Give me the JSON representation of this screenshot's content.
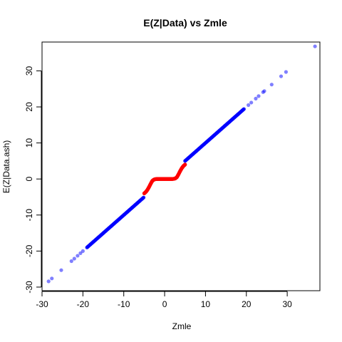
{
  "chart_data": {
    "type": "scatter",
    "title": "E(Z|Data) vs Zmle",
    "xlabel": "Zmle",
    "ylabel": "E(Z|Data.ash)",
    "xlim": [
      -30,
      38
    ],
    "ylim": [
      -31,
      38
    ],
    "xticks": [
      -30,
      -20,
      -10,
      0,
      10,
      20,
      30
    ],
    "yticks": [
      -30,
      -20,
      -10,
      0,
      10,
      20,
      30
    ],
    "grid": false,
    "colors": {
      "blue": "#0000ff",
      "red": "#ff0000"
    },
    "points": [
      {
        "x": -28.4,
        "y": -28.4
      },
      {
        "x": -27.6,
        "y": -27.6
      },
      {
        "x": -25.3,
        "y": -25.3
      },
      {
        "x": -22.8,
        "y": -22.8
      },
      {
        "x": -22.1,
        "y": -22.1
      },
      {
        "x": -21.3,
        "y": -21.3
      },
      {
        "x": -20.6,
        "y": -20.6
      },
      {
        "x": -20.0,
        "y": -20.0
      },
      {
        "x": 20.5,
        "y": 20.5
      },
      {
        "x": 21.2,
        "y": 21.2
      },
      {
        "x": 22.3,
        "y": 22.3
      },
      {
        "x": 23.0,
        "y": 23.0
      },
      {
        "x": 24.1,
        "y": 24.1
      },
      {
        "x": 24.4,
        "y": 24.4
      },
      {
        "x": 26.2,
        "y": 26.2
      },
      {
        "x": 28.5,
        "y": 28.5
      },
      {
        "x": 29.7,
        "y": 29.7
      },
      {
        "x": 36.8,
        "y": 36.8
      }
    ],
    "blue_dense_ranges": [
      [
        -19.0,
        -5.0
      ],
      [
        5.0,
        19.5
      ]
    ],
    "red_curve": [
      {
        "x": -5.0,
        "y": -4.0
      },
      {
        "x": -4.6,
        "y": -3.6
      },
      {
        "x": -4.2,
        "y": -3.0
      },
      {
        "x": -3.8,
        "y": -2.2
      },
      {
        "x": -3.4,
        "y": -1.3
      },
      {
        "x": -3.0,
        "y": -0.5
      },
      {
        "x": -2.6,
        "y": -0.15
      },
      {
        "x": -2.2,
        "y": -0.04
      },
      {
        "x": -1.6,
        "y": 0.0
      },
      {
        "x": 0.0,
        "y": 0.0
      },
      {
        "x": 1.6,
        "y": 0.0
      },
      {
        "x": 2.2,
        "y": 0.04
      },
      {
        "x": 2.6,
        "y": 0.15
      },
      {
        "x": 3.0,
        "y": 0.5
      },
      {
        "x": 3.4,
        "y": 1.3
      },
      {
        "x": 3.8,
        "y": 2.2
      },
      {
        "x": 4.2,
        "y": 3.0
      },
      {
        "x": 4.6,
        "y": 3.6
      },
      {
        "x": 5.0,
        "y": 4.0
      }
    ]
  }
}
